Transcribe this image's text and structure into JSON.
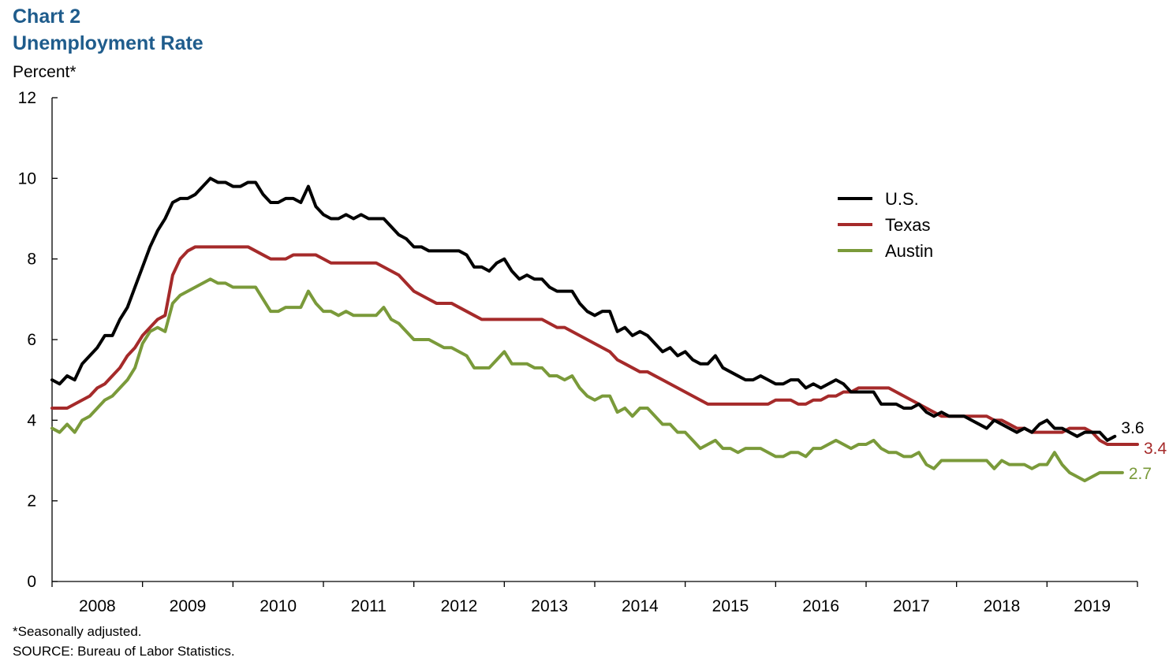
{
  "title": "Chart 2",
  "subtitle": "Unemployment Rate",
  "unit_label": "Percent*",
  "footnote": "*Seasonally adjusted.",
  "source": "SOURCE: Bureau of Labor Statistics.",
  "chart_data": {
    "type": "line",
    "title": "Unemployment Rate",
    "ylabel": "Percent*",
    "ylim": [
      0,
      12
    ],
    "yticks": [
      0,
      2,
      4,
      6,
      8,
      10,
      12
    ],
    "x_start": "2008-01",
    "x_range": [
      "2008-01",
      "2020-01"
    ],
    "x_tick_labels": [
      "2008",
      "2009",
      "2010",
      "2011",
      "2012",
      "2013",
      "2014",
      "2015",
      "2016",
      "2017",
      "2018",
      "2019"
    ],
    "grid": false,
    "legend_position": "upper-right",
    "series": [
      {
        "name": "U.S.",
        "color": "#000000",
        "end_label": "3.6",
        "values": [
          5.0,
          4.9,
          5.1,
          5.0,
          5.4,
          5.6,
          5.8,
          6.1,
          6.1,
          6.5,
          6.8,
          7.3,
          7.8,
          8.3,
          8.7,
          9.0,
          9.4,
          9.5,
          9.5,
          9.6,
          9.8,
          10.0,
          9.9,
          9.9,
          9.8,
          9.8,
          9.9,
          9.9,
          9.6,
          9.4,
          9.4,
          9.5,
          9.5,
          9.4,
          9.8,
          9.3,
          9.1,
          9.0,
          9.0,
          9.1,
          9.0,
          9.1,
          9.0,
          9.0,
          9.0,
          8.8,
          8.6,
          8.5,
          8.3,
          8.3,
          8.2,
          8.2,
          8.2,
          8.2,
          8.2,
          8.1,
          7.8,
          7.8,
          7.7,
          7.9,
          8.0,
          7.7,
          7.5,
          7.6,
          7.5,
          7.5,
          7.3,
          7.2,
          7.2,
          7.2,
          6.9,
          6.7,
          6.6,
          6.7,
          6.7,
          6.2,
          6.3,
          6.1,
          6.2,
          6.1,
          5.9,
          5.7,
          5.8,
          5.6,
          5.7,
          5.5,
          5.4,
          5.4,
          5.6,
          5.3,
          5.2,
          5.1,
          5.0,
          5.0,
          5.1,
          5.0,
          4.9,
          4.9,
          5.0,
          5.0,
          4.8,
          4.9,
          4.8,
          4.9,
          5.0,
          4.9,
          4.7,
          4.7,
          4.7,
          4.7,
          4.4,
          4.4,
          4.4,
          4.3,
          4.3,
          4.4,
          4.2,
          4.1,
          4.2,
          4.1,
          4.1,
          4.1,
          4.0,
          3.9,
          3.8,
          4.0,
          3.9,
          3.8,
          3.7,
          3.8,
          3.7,
          3.9,
          4.0,
          3.8,
          3.8,
          3.7,
          3.6,
          3.7,
          3.7,
          3.7,
          3.5,
          3.6
        ],
        "last_value": 3.6
      },
      {
        "name": "Texas",
        "color": "#a52a2a",
        "end_label": "3.4",
        "values": [
          4.3,
          4.3,
          4.3,
          4.4,
          4.5,
          4.6,
          4.8,
          4.9,
          5.1,
          5.3,
          5.6,
          5.8,
          6.1,
          6.3,
          6.5,
          6.6,
          7.6,
          8.0,
          8.2,
          8.3,
          8.3,
          8.3,
          8.3,
          8.3,
          8.3,
          8.3,
          8.3,
          8.2,
          8.1,
          8.0,
          8.0,
          8.0,
          8.1,
          8.1,
          8.1,
          8.1,
          8.0,
          7.9,
          7.9,
          7.9,
          7.9,
          7.9,
          7.9,
          7.9,
          7.8,
          7.7,
          7.6,
          7.4,
          7.2,
          7.1,
          7.0,
          6.9,
          6.9,
          6.9,
          6.8,
          6.7,
          6.6,
          6.5,
          6.5,
          6.5,
          6.5,
          6.5,
          6.5,
          6.5,
          6.5,
          6.5,
          6.4,
          6.3,
          6.3,
          6.2,
          6.1,
          6.0,
          5.9,
          5.8,
          5.7,
          5.5,
          5.4,
          5.3,
          5.2,
          5.2,
          5.1,
          5.0,
          4.9,
          4.8,
          4.7,
          4.6,
          4.5,
          4.4,
          4.4,
          4.4,
          4.4,
          4.4,
          4.4,
          4.4,
          4.4,
          4.4,
          4.5,
          4.5,
          4.5,
          4.4,
          4.4,
          4.5,
          4.5,
          4.6,
          4.6,
          4.7,
          4.7,
          4.8,
          4.8,
          4.8,
          4.8,
          4.8,
          4.7,
          4.6,
          4.5,
          4.4,
          4.3,
          4.2,
          4.1,
          4.1,
          4.1,
          4.1,
          4.1,
          4.1,
          4.1,
          4.0,
          4.0,
          3.9,
          3.8,
          3.8,
          3.7,
          3.7,
          3.7,
          3.7,
          3.7,
          3.8,
          3.8,
          3.8,
          3.7,
          3.5,
          3.4,
          3.4,
          3.4,
          3.4,
          3.4
        ],
        "last_value": 3.4
      },
      {
        "name": "Austin",
        "color": "#7a9a3a",
        "end_label": "2.7",
        "values": [
          3.8,
          3.7,
          3.9,
          3.7,
          4.0,
          4.1,
          4.3,
          4.5,
          4.6,
          4.8,
          5.0,
          5.3,
          5.9,
          6.2,
          6.3,
          6.2,
          6.9,
          7.1,
          7.2,
          7.3,
          7.4,
          7.5,
          7.4,
          7.4,
          7.3,
          7.3,
          7.3,
          7.3,
          7.0,
          6.7,
          6.7,
          6.8,
          6.8,
          6.8,
          7.2,
          6.9,
          6.7,
          6.7,
          6.6,
          6.7,
          6.6,
          6.6,
          6.6,
          6.6,
          6.8,
          6.5,
          6.4,
          6.2,
          6.0,
          6.0,
          6.0,
          5.9,
          5.8,
          5.8,
          5.7,
          5.6,
          5.3,
          5.3,
          5.3,
          5.5,
          5.7,
          5.4,
          5.4,
          5.4,
          5.3,
          5.3,
          5.1,
          5.1,
          5.0,
          5.1,
          4.8,
          4.6,
          4.5,
          4.6,
          4.6,
          4.2,
          4.3,
          4.1,
          4.3,
          4.3,
          4.1,
          3.9,
          3.9,
          3.7,
          3.7,
          3.5,
          3.3,
          3.4,
          3.5,
          3.3,
          3.3,
          3.2,
          3.3,
          3.3,
          3.3,
          3.2,
          3.1,
          3.1,
          3.2,
          3.2,
          3.1,
          3.3,
          3.3,
          3.4,
          3.5,
          3.4,
          3.3,
          3.4,
          3.4,
          3.5,
          3.3,
          3.2,
          3.2,
          3.1,
          3.1,
          3.2,
          2.9,
          2.8,
          3.0,
          3.0,
          3.0,
          3.0,
          3.0,
          3.0,
          3.0,
          2.8,
          3.0,
          2.9,
          2.9,
          2.9,
          2.8,
          2.9,
          2.9,
          3.2,
          2.9,
          2.7,
          2.6,
          2.5,
          2.6,
          2.7,
          2.7,
          2.7,
          2.7
        ],
        "last_value": 2.7
      }
    ]
  }
}
